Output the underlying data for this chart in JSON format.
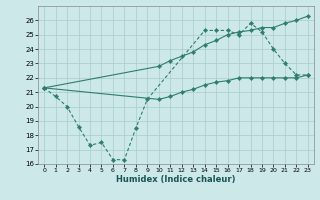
{
  "xlabel": "Humidex (Indice chaleur)",
  "background_color": "#cce8e8",
  "grid_color": "#aacccc",
  "line_color": "#2e7d6e",
  "xlim": [
    -0.5,
    23.5
  ],
  "ylim": [
    16,
    27
  ],
  "xticks": [
    0,
    1,
    2,
    3,
    4,
    5,
    6,
    7,
    8,
    9,
    10,
    11,
    12,
    13,
    14,
    15,
    16,
    17,
    18,
    19,
    20,
    21,
    22,
    23
  ],
  "yticks": [
    16,
    17,
    18,
    19,
    20,
    21,
    22,
    23,
    24,
    25,
    26
  ],
  "series1_x": [
    0,
    1,
    2,
    3,
    4,
    5,
    6,
    7,
    8,
    9,
    14,
    15,
    16,
    17,
    18,
    19,
    20,
    21,
    22,
    23
  ],
  "series1_y": [
    21.3,
    20.7,
    20.0,
    18.6,
    17.3,
    17.5,
    16.3,
    16.3,
    18.5,
    20.5,
    25.3,
    25.3,
    25.3,
    25.0,
    25.8,
    25.2,
    24.0,
    23.0,
    22.2,
    22.2
  ],
  "series2_x": [
    0,
    10,
    11,
    12,
    13,
    14,
    15,
    16,
    17,
    18,
    19,
    20,
    21,
    22,
    23
  ],
  "series2_y": [
    21.3,
    22.8,
    23.2,
    23.5,
    23.8,
    24.3,
    24.6,
    25.0,
    25.2,
    25.3,
    25.5,
    25.5,
    25.8,
    26.0,
    26.3
  ],
  "series3_x": [
    0,
    10,
    11,
    12,
    13,
    14,
    15,
    16,
    17,
    18,
    19,
    20,
    21,
    22,
    23
  ],
  "series3_y": [
    21.3,
    20.5,
    20.7,
    21.0,
    21.2,
    21.5,
    21.7,
    21.8,
    22.0,
    22.0,
    22.0,
    22.0,
    22.0,
    22.0,
    22.2
  ]
}
